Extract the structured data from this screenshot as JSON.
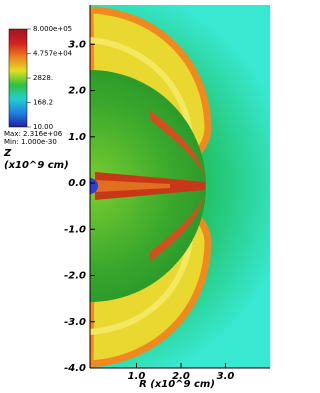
{
  "chart_data": {
    "type": "pseudocolor",
    "ylabel": [
      "Z",
      "(x10^9 cm)"
    ],
    "xlabel": "R (x10^9 cm)",
    "xlim": [
      0,
      4.0
    ],
    "ylim": [
      -4.0,
      3.85
    ],
    "xticks": [
      {
        "value": 1.0,
        "label": "1.0"
      },
      {
        "value": 2.0,
        "label": "2.0"
      },
      {
        "value": 3.0,
        "label": "3.0"
      }
    ],
    "yticks": [
      {
        "value": 3.0,
        "label": "3.0"
      },
      {
        "value": 2.0,
        "label": "2.0"
      },
      {
        "value": 1.0,
        "label": "1.0"
      },
      {
        "value": 0.0,
        "label": "0.0"
      },
      {
        "value": -1.0,
        "label": "-1.0"
      },
      {
        "value": -2.0,
        "label": "-2.0"
      },
      {
        "value": -3.0,
        "label": "-3.0"
      },
      {
        "value": -4.0,
        "label": "-4.0"
      }
    ],
    "colorbar": {
      "log": true,
      "lim": [
        10,
        800000
      ],
      "ticks": [
        {
          "value": 800000,
          "label": "8.000e+05"
        },
        {
          "value": 47570,
          "label": "4.757e+04"
        },
        {
          "value": 2828,
          "label": "2828."
        },
        {
          "value": 168.2,
          "label": "168.2"
        },
        {
          "value": 10,
          "label": "10.00"
        }
      ],
      "colors": [
        "#2020a0",
        "#2080e0",
        "#20d0d0",
        "#30c040",
        "#e0e020",
        "#f08020",
        "#d02020",
        "#a01820"
      ],
      "max_text": "Max: 2.316e+06",
      "min_text": "Min: 1.000e-30"
    }
  }
}
